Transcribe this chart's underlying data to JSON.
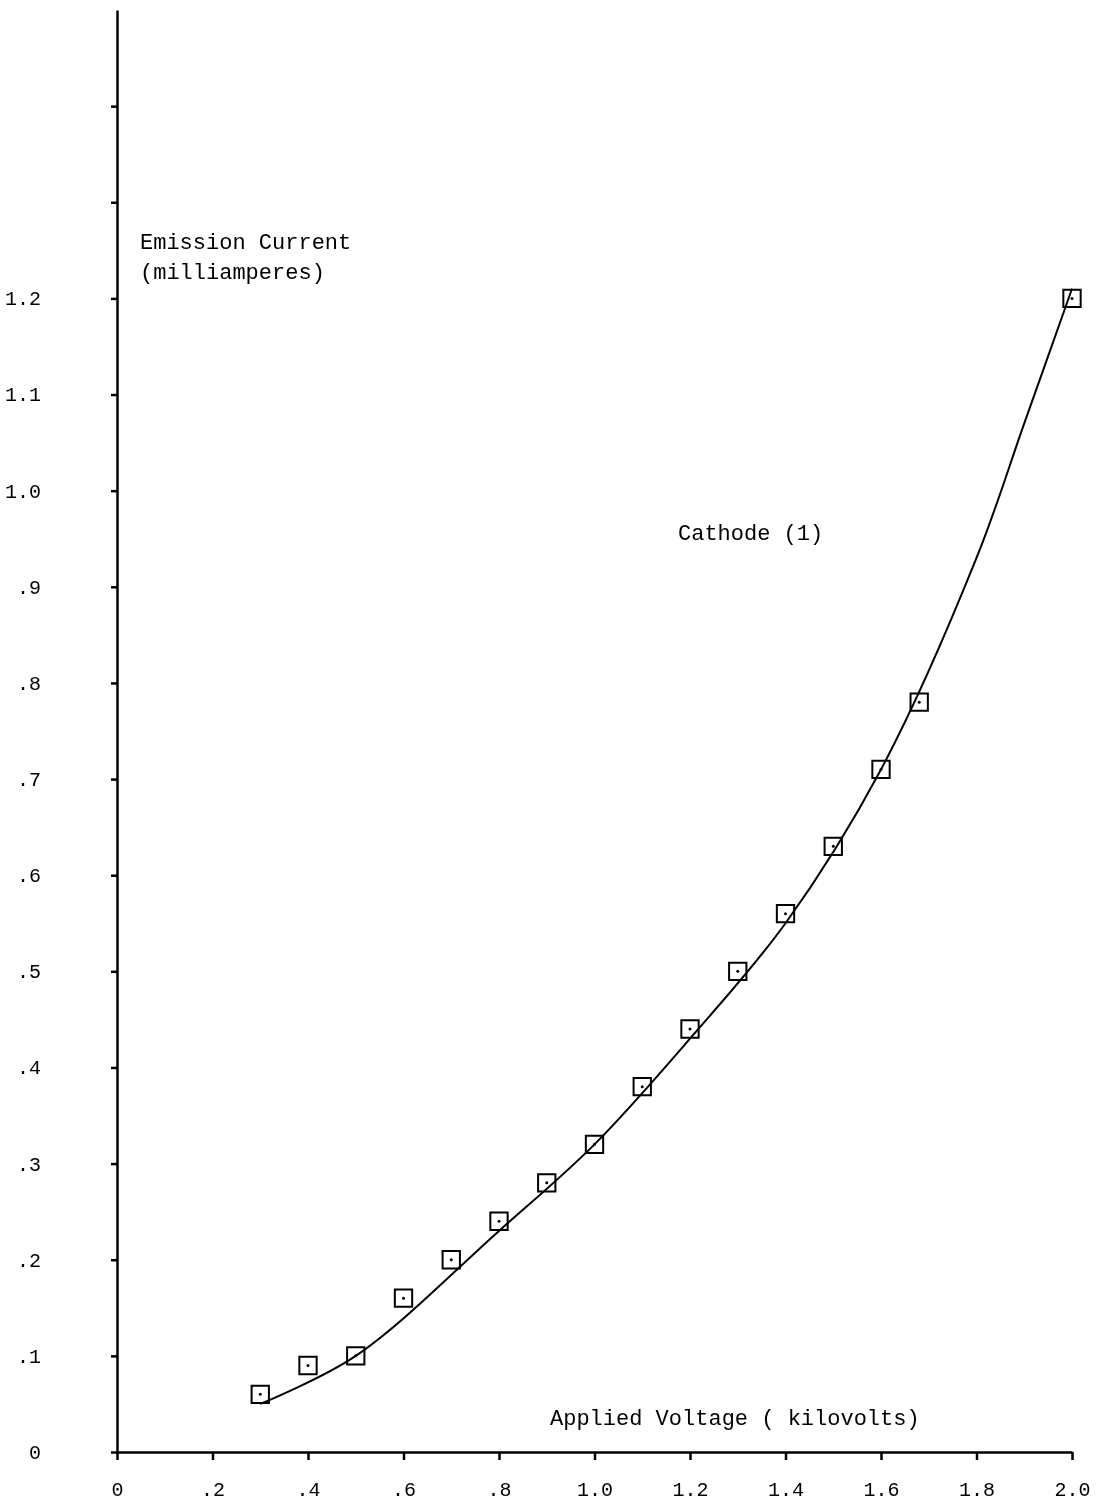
{
  "chart_data": {
    "type": "scatter",
    "xlabel": "Applied Voltage ( kilovolts)",
    "ylabel": "Emission Current (milliamperes)",
    "annotations": [
      "Cathode (1)"
    ],
    "xlim": [
      0,
      2.0
    ],
    "ylim": [
      0,
      1.5
    ],
    "xticks": [
      0,
      {
        "value": 0.2,
        "label": ".2"
      },
      {
        "value": 0.4,
        "label": ".4"
      },
      {
        "value": 0.6,
        "label": ".6"
      },
      {
        "value": 0.8,
        "label": ".8"
      },
      {
        "value": 1.0,
        "label": "1.0"
      },
      {
        "value": 1.2,
        "label": "1.2"
      },
      {
        "value": 1.4,
        "label": "1.4"
      },
      {
        "value": 1.6,
        "label": "1.6"
      },
      {
        "value": 1.8,
        "label": "1.8"
      },
      {
        "value": 2.0,
        "label": "2.0"
      }
    ],
    "yticks": [
      0,
      {
        "value": 0.1,
        "label": ".1"
      },
      {
        "value": 0.2,
        "label": ".2"
      },
      {
        "value": 0.3,
        "label": ".3"
      },
      {
        "value": 0.4,
        "label": ".4"
      },
      {
        "value": 0.5,
        "label": ".5"
      },
      {
        "value": 0.6,
        "label": ".6"
      },
      {
        "value": 0.7,
        "label": ".7"
      },
      {
        "value": 0.8,
        "label": ".8"
      },
      {
        "value": 0.9,
        "label": ".9"
      },
      {
        "value": 1.0,
        "label": "1.0"
      },
      {
        "value": 1.1,
        "label": "1.1"
      },
      {
        "value": 1.2,
        "label": "1.2"
      },
      {
        "value": 1.3,
        "label": null
      },
      {
        "value": 1.4,
        "label": null
      }
    ],
    "grid": false,
    "series": [
      {
        "marker": "square",
        "color": "#000000",
        "x": [
          0.3,
          0.4,
          0.5,
          0.6,
          0.7,
          0.8,
          0.9,
          1.0,
          1.1,
          1.2,
          1.3,
          1.4,
          1.5,
          1.6,
          1.68,
          2.0
        ],
        "values": [
          0.06,
          0.09,
          0.1,
          0.16,
          0.2,
          0.24,
          0.28,
          0.32,
          0.38,
          0.44,
          0.5,
          0.56,
          0.63,
          0.71,
          0.78,
          1.2
        ]
      },
      {
        "type": "line",
        "line_style": "solid",
        "color": "#000000",
        "x": [
          0.3,
          0.5,
          0.8,
          1.0,
          1.2,
          1.4,
          1.6,
          1.8,
          1.9,
          2.0
        ],
        "values": [
          0.05,
          0.1,
          0.23,
          0.32,
          0.43,
          0.55,
          0.71,
          0.93,
          1.07,
          1.21
        ]
      }
    ]
  }
}
